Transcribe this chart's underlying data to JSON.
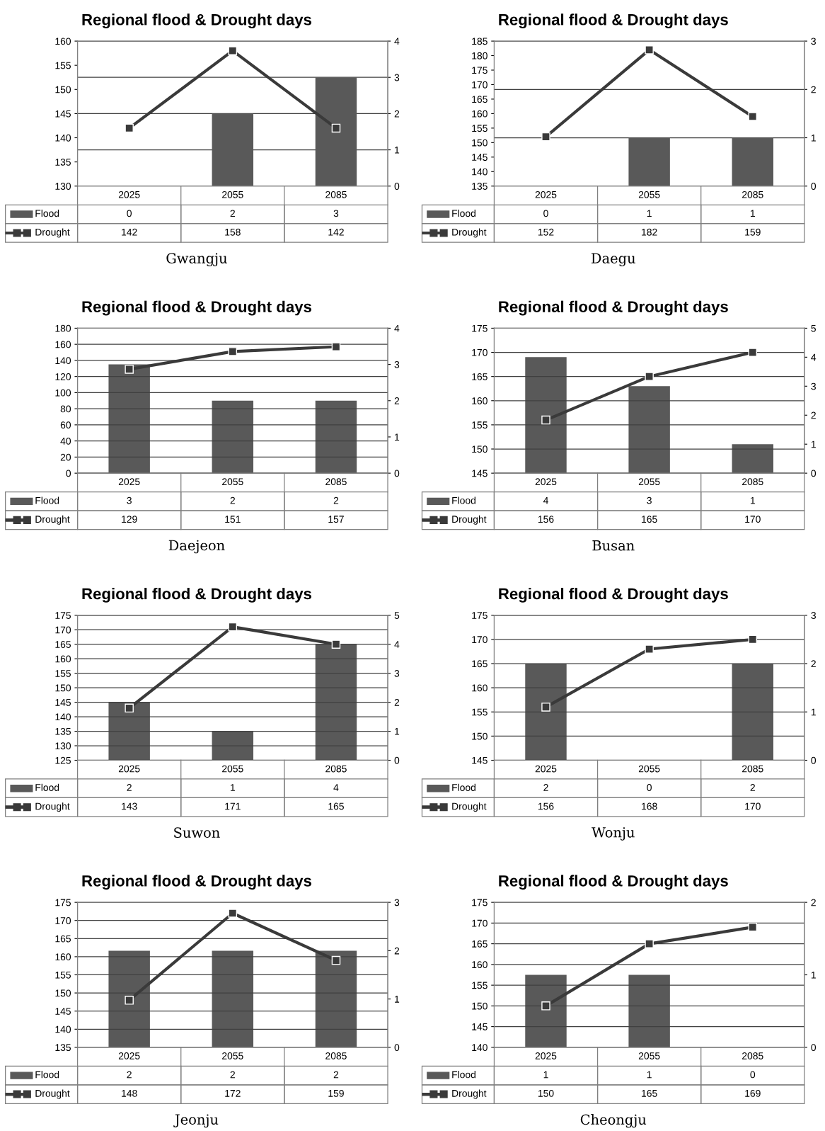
{
  "chart_data": [
    {
      "type": "bar",
      "title": "Regional flood & Drought days",
      "annotations": [
        "Gwangju"
      ],
      "categories": [
        "2025",
        "2055",
        "2085"
      ],
      "ylim": [
        130,
        160
      ],
      "yticks": [
        130,
        135,
        140,
        145,
        150,
        155,
        160
      ],
      "y2lim": [
        0,
        4
      ],
      "y2ticks": [
        0,
        1,
        2,
        3,
        4
      ],
      "grid": "y2",
      "legend": "bottom",
      "data_labels": true,
      "series": [
        {
          "name": "Flood",
          "axis": "y2",
          "color": "#595959",
          "values": [
            0,
            2,
            3
          ]
        },
        {
          "name": "Drought",
          "type": "line",
          "marker": "square",
          "color": "#3a3a3a",
          "values": [
            142,
            158,
            142
          ]
        }
      ]
    },
    {
      "type": "bar",
      "title": "Regional flood & Drought days",
      "annotations": [
        "Daegu"
      ],
      "categories": [
        "2025",
        "2055",
        "2085"
      ],
      "ylim": [
        135,
        185
      ],
      "yticks": [
        135,
        140,
        145,
        150,
        155,
        160,
        165,
        170,
        175,
        180,
        185
      ],
      "y2lim": [
        0,
        3
      ],
      "y2ticks": [
        0,
        1,
        2,
        3
      ],
      "grid": "y2",
      "legend": "bottom",
      "data_labels": true,
      "series": [
        {
          "name": "Flood",
          "axis": "y2",
          "color": "#595959",
          "values": [
            0,
            1,
            1
          ]
        },
        {
          "name": "Drought",
          "type": "line",
          "marker": "square",
          "color": "#3a3a3a",
          "values": [
            152,
            182,
            159
          ]
        }
      ]
    },
    {
      "type": "bar",
      "title": "Regional flood & Drought days",
      "annotations": [
        "Daejeon"
      ],
      "categories": [
        "2025",
        "2055",
        "2085"
      ],
      "ylim": [
        0,
        180
      ],
      "yticks": [
        0,
        20,
        40,
        60,
        80,
        100,
        120,
        140,
        160,
        180
      ],
      "y2lim": [
        0,
        4
      ],
      "y2ticks": [
        0,
        1,
        2,
        3,
        4
      ],
      "grid": "y",
      "legend": "bottom",
      "data_labels": true,
      "series": [
        {
          "name": "Flood",
          "axis": "y2",
          "color": "#595959",
          "values": [
            3,
            2,
            2
          ]
        },
        {
          "name": "Drought",
          "type": "line",
          "marker": "square",
          "color": "#3a3a3a",
          "values": [
            129,
            151,
            157
          ]
        }
      ]
    },
    {
      "type": "bar",
      "title": "Regional flood & Drought days",
      "annotations": [
        "Busan"
      ],
      "categories": [
        "2025",
        "2055",
        "2085"
      ],
      "ylim": [
        145,
        175
      ],
      "yticks": [
        145,
        150,
        155,
        160,
        165,
        170,
        175
      ],
      "y2lim": [
        0,
        5
      ],
      "y2ticks": [
        0,
        1,
        2,
        3,
        4,
        5
      ],
      "grid": "y",
      "legend": "bottom",
      "data_labels": true,
      "series": [
        {
          "name": "Flood",
          "axis": "y2",
          "color": "#595959",
          "values": [
            4,
            3,
            1
          ]
        },
        {
          "name": "Drought",
          "type": "line",
          "marker": "square",
          "color": "#3a3a3a",
          "values": [
            156,
            165,
            170
          ]
        }
      ]
    },
    {
      "type": "bar",
      "title": "Regional flood & Drought days",
      "annotations": [
        "Suwon"
      ],
      "categories": [
        "2025",
        "2055",
        "2085"
      ],
      "ylim": [
        125,
        175
      ],
      "yticks": [
        125,
        130,
        135,
        140,
        145,
        150,
        155,
        160,
        165,
        170,
        175
      ],
      "y2lim": [
        0,
        5
      ],
      "y2ticks": [
        0,
        1,
        2,
        3,
        4,
        5
      ],
      "grid": "y",
      "legend": "bottom",
      "data_labels": true,
      "series": [
        {
          "name": "Flood",
          "axis": "y2",
          "color": "#595959",
          "values": [
            2,
            1,
            4
          ]
        },
        {
          "name": "Drought",
          "type": "line",
          "marker": "square",
          "color": "#3a3a3a",
          "values": [
            143,
            171,
            165
          ]
        }
      ]
    },
    {
      "type": "bar",
      "title": "Regional flood & Drought days",
      "annotations": [
        "Wonju"
      ],
      "categories": [
        "2025",
        "2055",
        "2085"
      ],
      "ylim": [
        145,
        175
      ],
      "yticks": [
        145,
        150,
        155,
        160,
        165,
        170,
        175
      ],
      "y2lim": [
        0,
        3
      ],
      "y2ticks": [
        0,
        1,
        2,
        3
      ],
      "grid": "y",
      "legend": "bottom",
      "data_labels": true,
      "series": [
        {
          "name": "Flood",
          "axis": "y2",
          "color": "#595959",
          "values": [
            2,
            0,
            2
          ]
        },
        {
          "name": "Drought",
          "type": "line",
          "marker": "square",
          "color": "#3a3a3a",
          "values": [
            156,
            168,
            170
          ]
        }
      ]
    },
    {
      "type": "bar",
      "title": "Regional flood & Drought days",
      "annotations": [
        "Jeonju"
      ],
      "categories": [
        "2025",
        "2055",
        "2085"
      ],
      "ylim": [
        135,
        175
      ],
      "yticks": [
        135,
        140,
        145,
        150,
        155,
        160,
        165,
        170,
        175
      ],
      "y2lim": [
        0,
        3
      ],
      "y2ticks": [
        0,
        1,
        2,
        3
      ],
      "grid": "y",
      "legend": "bottom",
      "data_labels": true,
      "series": [
        {
          "name": "Flood",
          "axis": "y2",
          "color": "#595959",
          "values": [
            2,
            2,
            2
          ]
        },
        {
          "name": "Drought",
          "type": "line",
          "marker": "square",
          "color": "#3a3a3a",
          "values": [
            148,
            172,
            159
          ]
        }
      ]
    },
    {
      "type": "bar",
      "title": "Regional flood & Drought days",
      "annotations": [
        "Cheongju"
      ],
      "categories": [
        "2025",
        "2055",
        "2085"
      ],
      "ylim": [
        140,
        175
      ],
      "yticks": [
        140,
        145,
        150,
        155,
        160,
        165,
        170,
        175
      ],
      "y2lim": [
        0,
        2
      ],
      "y2ticks": [
        0,
        1,
        2
      ],
      "grid": "y",
      "legend": "bottom",
      "data_labels": true,
      "series": [
        {
          "name": "Flood",
          "axis": "y2",
          "color": "#595959",
          "values": [
            1,
            1,
            0
          ]
        },
        {
          "name": "Drought",
          "type": "line",
          "marker": "square",
          "color": "#3a3a3a",
          "values": [
            150,
            165,
            169
          ]
        }
      ]
    }
  ]
}
